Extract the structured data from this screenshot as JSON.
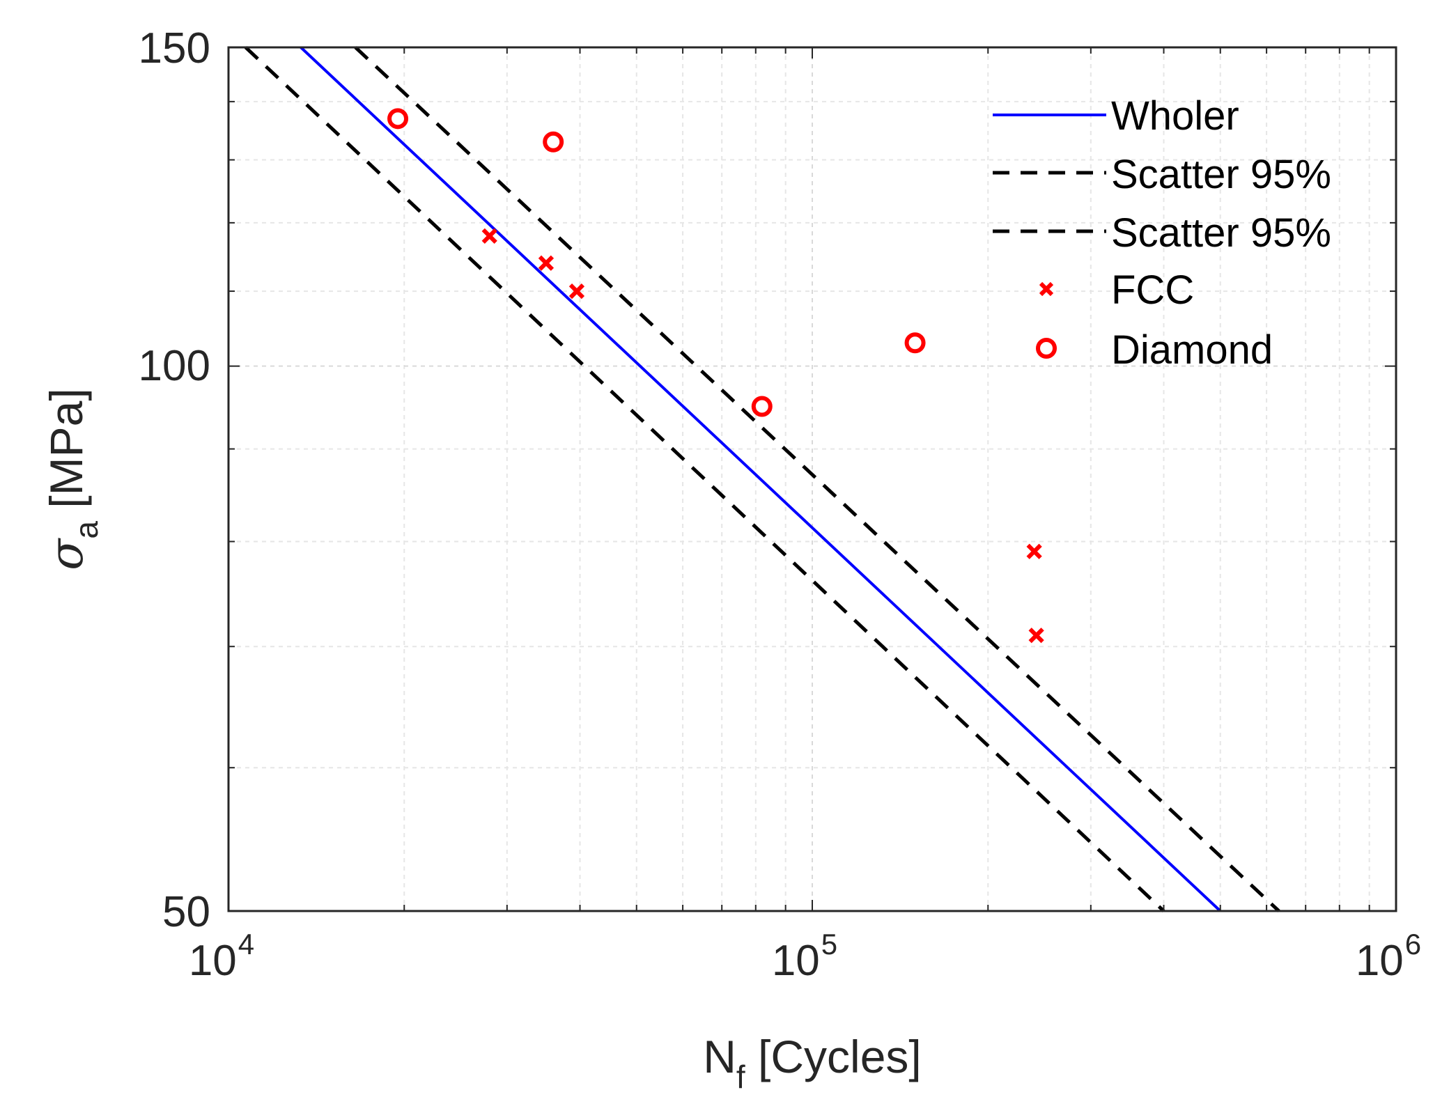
{
  "chart_data": {
    "type": "scatter",
    "xscale": "log",
    "yscale": "log",
    "xlim": [
      10000,
      1000000
    ],
    "ylim": [
      50,
      150
    ],
    "x_ticks": [
      {
        "value": 10000,
        "base": "10",
        "exp": "4"
      },
      {
        "value": 100000,
        "base": "10",
        "exp": "5"
      },
      {
        "value": 1000000,
        "base": "10",
        "exp": "6"
      }
    ],
    "y_ticks": [
      {
        "value": 50,
        "label": "50"
      },
      {
        "value": 100,
        "label": "100"
      },
      {
        "value": 150,
        "label": "150"
      }
    ],
    "xlabel": {
      "main": "N",
      "sub": "f",
      "rest": " [Cycles]"
    },
    "ylabel": {
      "symbol": "σ",
      "sub": "a",
      "rest": " [MPa]"
    },
    "grid": true,
    "legend_position": "top-right",
    "series": [
      {
        "name": "Wholer",
        "kind": "line",
        "style": "solid",
        "color": "#0000ff",
        "x": [
          13300,
          500000
        ],
        "y": [
          150,
          50
        ]
      },
      {
        "name": "Scatter 95%",
        "kind": "line",
        "style": "dashed",
        "color": "#000000",
        "x": [
          10700,
          400000
        ],
        "y": [
          150,
          50
        ]
      },
      {
        "name": "Scatter 95%",
        "kind": "line",
        "style": "dashed",
        "color": "#000000",
        "x": [
          16500,
          630000
        ],
        "y": [
          150,
          50
        ]
      },
      {
        "name": "FCC",
        "kind": "marker",
        "marker": "x",
        "color": "#ff0000",
        "x": [
          28000,
          35000,
          39500,
          240000,
          242000
        ],
        "y": [
          118,
          114,
          110,
          79,
          71
        ]
      },
      {
        "name": "Diamond",
        "kind": "marker",
        "marker": "o",
        "color": "#ff0000",
        "x": [
          19500,
          36000,
          82000,
          150000
        ],
        "y": [
          137,
          133,
          95,
          103
        ]
      }
    ]
  }
}
